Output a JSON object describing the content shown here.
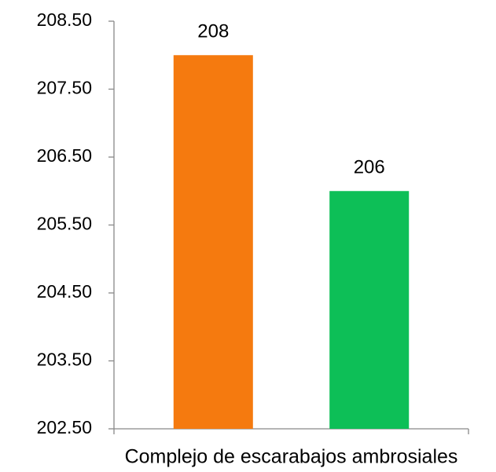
{
  "chart_data": {
    "type": "bar",
    "categories": [
      "Complejo de escarabajos ambrosiales"
    ],
    "series": [
      {
        "color": "#f57a0f",
        "values": [
          208
        ]
      },
      {
        "color": "#0dbf57",
        "values": [
          206
        ]
      }
    ],
    "ylim": [
      202.5,
      208.5
    ],
    "yticks": [
      {
        "value": 202.5,
        "label": "202.50"
      },
      {
        "value": 203.5,
        "label": "203.50"
      },
      {
        "value": 204.5,
        "label": "204.50"
      },
      {
        "value": 205.5,
        "label": "205.50"
      },
      {
        "value": 206.5,
        "label": "206.50"
      },
      {
        "value": 207.5,
        "label": "207.50"
      },
      {
        "value": 208.5,
        "label": "208.50"
      }
    ]
  }
}
